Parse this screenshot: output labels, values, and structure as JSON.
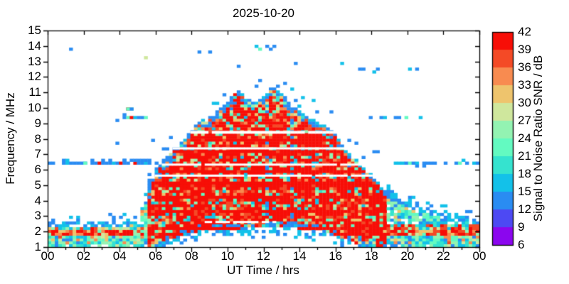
{
  "figure": {
    "title": "2025-10-20",
    "xlabel": "UT Time / hrs",
    "ylabel": "Frequency / MHz",
    "colorbar_label": "Signal to Noise Ratio SNR / dB"
  },
  "chart_data": {
    "type": "heatmap",
    "title": "2025-10-20",
    "xlabel": "UT Time / hrs",
    "ylabel": "Frequency / MHz",
    "xlim": [
      0,
      24
    ],
    "ylim": [
      1,
      15
    ],
    "xtick_labels": [
      "00",
      "02",
      "04",
      "06",
      "08",
      "10",
      "12",
      "14",
      "16",
      "18",
      "20",
      "22",
      "00"
    ],
    "ytick_labels": [
      "1",
      "2",
      "3",
      "4",
      "5",
      "6",
      "7",
      "8",
      "9",
      "10",
      "11",
      "12",
      "13",
      "14",
      "15"
    ],
    "grid": false,
    "colorbar": {
      "label": "Signal to Noise Ratio SNR / dB",
      "min": 6,
      "max": 42,
      "step": 3,
      "tick_labels": [
        "6",
        "9",
        "12",
        "15",
        "18",
        "21",
        "24",
        "27",
        "30",
        "33",
        "36",
        "39",
        "42"
      ],
      "colors": [
        "#8b06ee",
        "#4d49f3",
        "#2a8cf2",
        "#13c1e9",
        "#35e3cf",
        "#63fac1",
        "#93f3b2",
        "#cfe79d",
        "#eec46d",
        "#f88b50",
        "#f44a26",
        "#f70e07"
      ]
    },
    "seed": 42,
    "envelope_top_mhz": {
      "t_step_hrs": 0.5,
      "values": [
        2.6,
        2.6,
        2.6,
        2.6,
        2.6,
        2.6,
        2.65,
        2.65,
        2.7,
        2.7,
        3.1,
        4.2,
        6.0,
        6.8,
        7.4,
        7.9,
        8.6,
        9.2,
        9.5,
        10.0,
        10.4,
        11.3,
        10.7,
        10.3,
        10.8,
        11.4,
        10.9,
        10.3,
        9.9,
        9.4,
        9.1,
        8.8,
        8.3,
        7.4,
        6.9,
        6.2,
        5.7,
        5.0,
        4.5,
        4.2,
        3.9,
        3.7,
        3.5,
        3.4,
        3.2,
        3.1,
        3.0,
        2.9,
        2.8
      ]
    },
    "envelope_bottom_mhz": {
      "t_step_hrs": 0.5,
      "values": [
        1.0,
        1.0,
        1.0,
        1.0,
        1.0,
        1.0,
        1.0,
        1.0,
        1.0,
        1.0,
        1.0,
        1.0,
        1.15,
        1.4,
        1.6,
        1.8,
        2.0,
        2.05,
        2.1,
        2.15,
        2.2,
        2.2,
        2.25,
        2.25,
        2.3,
        2.3,
        2.3,
        2.25,
        2.2,
        2.15,
        2.1,
        2.0,
        1.8,
        1.55,
        1.3,
        1.15,
        1.0,
        1.0,
        1.0,
        1.0,
        1.0,
        1.0,
        1.0,
        1.0,
        1.0,
        1.0,
        1.0,
        1.0,
        1.0
      ]
    },
    "features": {
      "night_line": {
        "freq_mhz": 6.35,
        "span_hrs": [
          0,
          5.6
        ]
      },
      "evening_line": {
        "freq_mhz": 6.47,
        "span_hrs": [
          19.4,
          24
        ]
      },
      "evening_dots_row": {
        "freq_mhz": 9.42,
        "span_hrs": [
          17.9,
          21.1
        ]
      },
      "predawn_row": {
        "freq_mhz": 9.38,
        "span_hrs": [
          4.35,
          5.65
        ]
      },
      "predawn_vertical": {
        "t_hrs": 5.62,
        "freq_span_mhz": [
          4.7,
          5.75
        ]
      },
      "white_stripes": [
        {
          "freq_mhz": 8.42,
          "span_hrs": [
            7.9,
            16.2
          ],
          "h": 4
        },
        {
          "freq_mhz": 7.38,
          "span_hrs": [
            6.9,
            16.9
          ],
          "h": 3
        },
        {
          "freq_mhz": 6.33,
          "span_hrs": [
            6.0,
            18.0
          ],
          "h": 3
        },
        {
          "freq_mhz": 5.62,
          "span_hrs": [
            6.0,
            18.4
          ],
          "h": 3
        },
        {
          "freq_mhz": 2.62,
          "span_hrs": [
            8.8,
            12.6
          ],
          "h": 3
        }
      ],
      "red_rows_mhz": [
        1.9,
        2.25,
        3.35,
        4.15,
        5.05,
        5.9,
        7.1,
        7.9
      ],
      "scatter_dots": [
        [
          5.55,
          13.2,
          7
        ],
        [
          8.35,
          13.7,
          2
        ],
        [
          9.0,
          13.65,
          2
        ],
        [
          10.7,
          12.75,
          2
        ],
        [
          11.6,
          13.9,
          3
        ],
        [
          11.78,
          13.82,
          5
        ],
        [
          12.15,
          13.9,
          2
        ],
        [
          12.35,
          13.85,
          2
        ],
        [
          12.58,
          13.9,
          2
        ],
        [
          13.8,
          12.9,
          2
        ],
        [
          16.45,
          12.9,
          3
        ],
        [
          17.35,
          12.5,
          2
        ],
        [
          17.65,
          12.45,
          2
        ],
        [
          18.05,
          12.4,
          3
        ],
        [
          18.35,
          12.5,
          2
        ],
        [
          20.1,
          12.6,
          3
        ],
        [
          20.45,
          12.55,
          2
        ],
        [
          3.85,
          9.2,
          2
        ],
        [
          3.8,
          7.78,
          2
        ],
        [
          1.3,
          13.75,
          2
        ],
        [
          4.5,
          9.9,
          11
        ],
        [
          4.45,
          9.95,
          5
        ],
        [
          4.58,
          9.85,
          6
        ],
        [
          4.65,
          9.92,
          2
        ],
        [
          5.6,
          4.15,
          2
        ],
        [
          19.9,
          9.42,
          5
        ],
        [
          0.95,
          6.65,
          2
        ],
        [
          1.1,
          6.7,
          3
        ],
        [
          2.5,
          6.62,
          2
        ],
        [
          3.05,
          6.6,
          2
        ],
        [
          3.55,
          6.65,
          2
        ],
        [
          18.1,
          7.25,
          2
        ],
        [
          18.4,
          7.2,
          2
        ],
        [
          4.3,
          6.55,
          2
        ],
        [
          4.7,
          6.6,
          2
        ],
        [
          5.0,
          6.65,
          2
        ],
        [
          5.3,
          6.6,
          2
        ]
      ]
    }
  }
}
